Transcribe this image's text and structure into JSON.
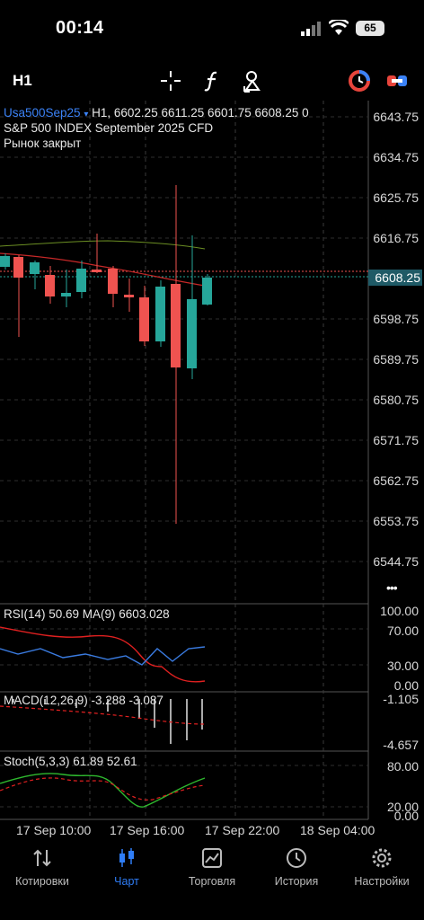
{
  "status_bar": {
    "time": "00:14",
    "battery": "65"
  },
  "toolbar": {
    "timeframe": "H1"
  },
  "chart_header": {
    "symbol": "Usa500Sep25",
    "symbol_arrow": "▾",
    "ohlc": "H1, 6602.25 6611.25 6601.75 6608.25 0",
    "description": "S&P 500 INDEX September 2025 CFD",
    "market_status": "Рынок закрыт"
  },
  "price_axis": [
    "6643.75",
    "6634.75",
    "6625.75",
    "6616.75",
    "6598.75",
    "6589.75",
    "6580.75",
    "6571.75",
    "6562.75",
    "6553.75",
    "6544.75"
  ],
  "current_price": "6608.25",
  "more_dots": "•••",
  "rsi": {
    "label": "RSI(14) 50.69 MA(9) 6603.028",
    "levels": [
      "100.00",
      "70.00",
      "30.00",
      "0.00"
    ]
  },
  "macd": {
    "label": "MACD(12,26,9) -3.288 -3.087",
    "levels": [
      "-1.105",
      "-4.657"
    ]
  },
  "stoch": {
    "label": "Stoch(5,3,3) 61.89 52.61",
    "levels": [
      "80.00",
      "20.00",
      "0.00"
    ]
  },
  "time_axis": [
    "17 Sep 10:00",
    "17 Sep 16:00",
    "17 Sep 22:00",
    "18 Sep 04:00"
  ],
  "colors": {
    "bull": "#26a69a",
    "bear": "#ef5350",
    "accent": "#2f7df6",
    "grid": "#3a3a3a"
  },
  "nav": [
    {
      "label": "Котировки",
      "icon": "quotes-arrows-icon"
    },
    {
      "label": "Чарт",
      "icon": "candles-icon"
    },
    {
      "label": "Торговля",
      "icon": "trade-chart-icon"
    },
    {
      "label": "История",
      "icon": "history-clock-icon"
    },
    {
      "label": "Настройки",
      "icon": "settings-gear-icon"
    }
  ]
}
